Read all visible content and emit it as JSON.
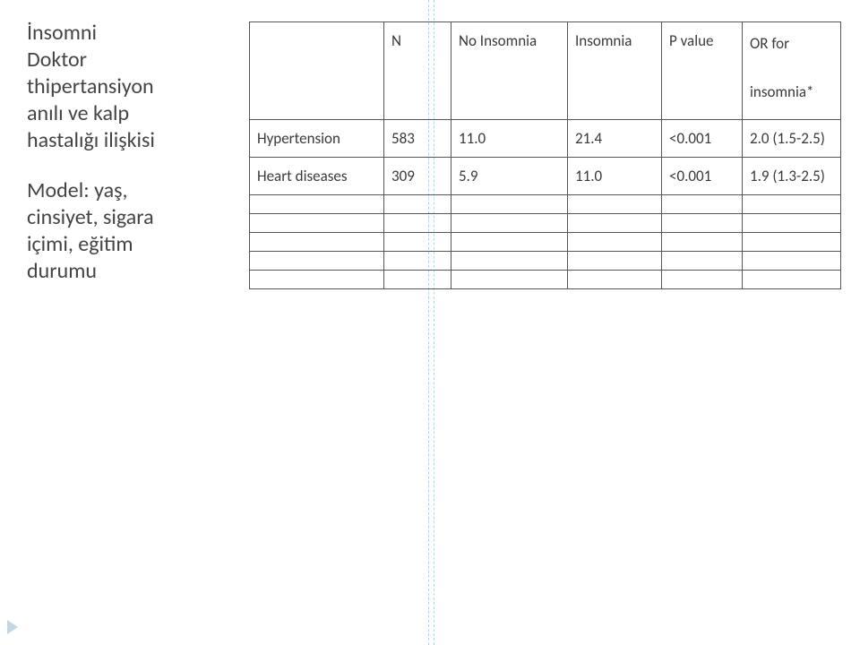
{
  "left": {
    "title_l1": "İnsomni",
    "title_l2": "Doktor",
    "title_l3": "thipertansiyon",
    "title_l4": "anılı ve kalp",
    "title_l5": "hastalığı ilişkisi",
    "sub_l1": "Model: yaş,",
    "sub_l2": "cinsiyet, sigara",
    "sub_l3": "içimi, eğitim",
    "sub_l4": "durumu"
  },
  "table": {
    "headers": {
      "label": "",
      "n": "N",
      "no_insomnia": "No Insomnia",
      "insomnia": "Insomnia",
      "p_value": "P value",
      "or_for": "OR for",
      "or_sub": "insomnia*"
    },
    "rows": {
      "r0": {
        "label": "Hypertension",
        "n": "583",
        "no_i": "11.0",
        "ins": "21.4",
        "p": "<0.001",
        "or": "2.0 (1.5-2.5)"
      },
      "r1": {
        "label": "Heart diseases",
        "n": "309",
        "no_i": "5.9",
        "ins": "11.0",
        "p": "<0.001",
        "or": "1.9 (1.3-2.5)"
      },
      "r2": {
        "label": "",
        "n": "",
        "no_i": "",
        "ins": "",
        "p": "",
        "or": ""
      },
      "r3": {
        "label": "",
        "n": "",
        "no_i": "",
        "ins": "",
        "p": "",
        "or": ""
      },
      "r4": {
        "label": "",
        "n": "",
        "no_i": "",
        "ins": "",
        "p": "",
        "or": ""
      },
      "r5": {
        "label": "",
        "n": "",
        "no_i": "",
        "ins": "",
        "p": "",
        "or": ""
      },
      "r6": {
        "label": "",
        "n": "",
        "no_i": "",
        "ins": "",
        "p": "",
        "or": ""
      }
    }
  },
  "style": {
    "bg": "#ffffff",
    "text": "#3a3a3a",
    "border": "#555555",
    "dashed": "#b9d4e3",
    "bullet": "#c4d7e3",
    "font": "Gill Sans"
  }
}
